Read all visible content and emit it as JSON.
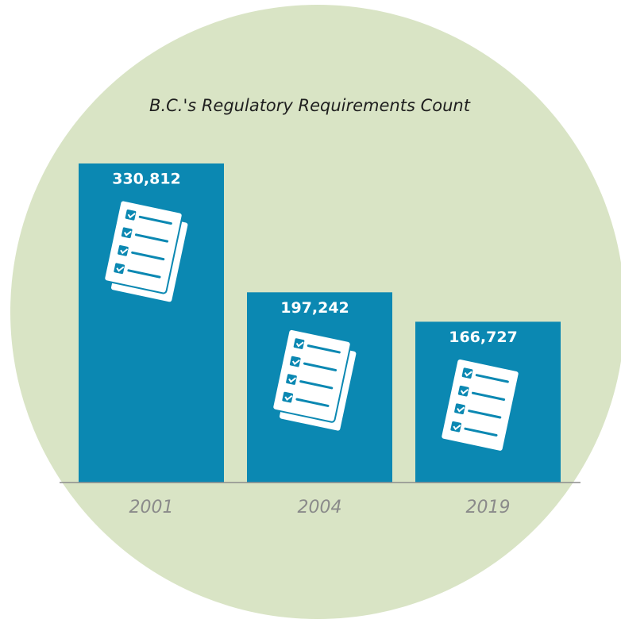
{
  "chart_data": {
    "type": "bar",
    "title": "B.C.'s Regulatory Requirements Count",
    "categories": [
      "2001",
      "2004",
      "2019"
    ],
    "values": [
      330812,
      197242,
      166727
    ],
    "value_labels": [
      "330,812",
      "197,242",
      "166,727"
    ],
    "color": "#0b88b2"
  }
}
